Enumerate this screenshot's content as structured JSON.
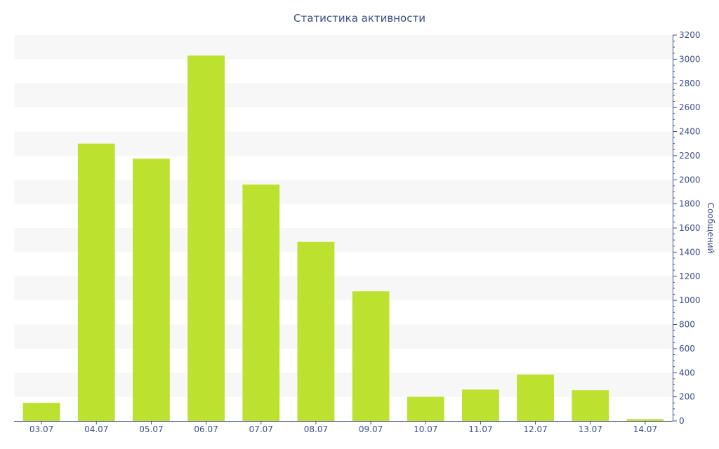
{
  "chart_data": {
    "type": "bar",
    "title": "Статистика активности",
    "xlabel": "",
    "ylabel": "Сообщений",
    "categories": [
      "03.07",
      "04.07",
      "05.07",
      "06.07",
      "07.07",
      "08.07",
      "09.07",
      "10.07",
      "11.07",
      "12.07",
      "13.07",
      "14.07"
    ],
    "values": [
      150,
      2300,
      2175,
      3030,
      1960,
      1485,
      1075,
      200,
      260,
      385,
      255,
      15
    ],
    "ylim": [
      0,
      3200
    ],
    "yticks": [
      0,
      200,
      400,
      600,
      800,
      1000,
      1200,
      1400,
      1600,
      1800,
      2000,
      2200,
      2400,
      2600,
      2800,
      3000,
      3200
    ],
    "y_axis_side": "right",
    "grid": "alternating horizontal bands",
    "legend": "none"
  },
  "colors": {
    "bar": "#bce22f",
    "text": "#3c4f88",
    "axis": "#3c4f88",
    "band": "#f7f7f7",
    "background": "#ffffff"
  }
}
